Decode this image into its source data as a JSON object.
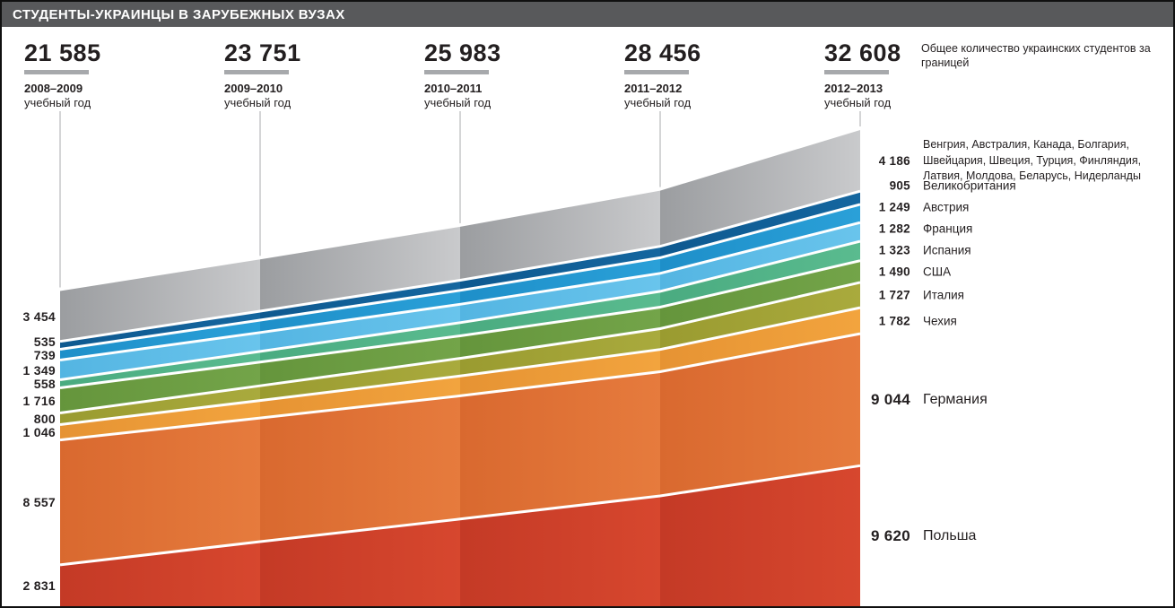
{
  "header": {
    "title": "СТУДЕНТЫ-УКРАИНЦЫ В ЗАРУБЕЖНЫХ ВУЗАХ"
  },
  "chart_data": {
    "type": "area",
    "stacked": true,
    "title": "СТУДЕНТЫ-УКРАИНЦЫ В ЗАРУБЕЖНЫХ ВУЗАХ",
    "note": "Общее количество украинских студентов за границей",
    "categories": [
      "2008–2009",
      "2009–2010",
      "2010–2011",
      "2011–2012",
      "2012–2013"
    ],
    "category_caption": "учебный год",
    "totals": [
      21585,
      23751,
      25983,
      28456,
      32608
    ],
    "legend_position": "right",
    "grid": false,
    "series": [
      {
        "name": "Польша",
        "start": 2831,
        "end": 9620,
        "color": "#d7472e",
        "color_dark": "#c43a26",
        "emphasis": true
      },
      {
        "name": "Германия",
        "start": 8557,
        "end": 9044,
        "color": "#e67b3d",
        "color_dark": "#d9692f",
        "emphasis": true
      },
      {
        "name": "Чехия",
        "start": 1046,
        "end": 1782,
        "color": "#f2a43e",
        "color_dark": "#e69333"
      },
      {
        "name": "Италия",
        "start": 800,
        "end": 1727,
        "color": "#a9aa3d",
        "color_dark": "#9a9b30"
      },
      {
        "name": "США",
        "start": 1716,
        "end": 1490,
        "color": "#73a449",
        "color_dark": "#65953c"
      },
      {
        "name": "Испания",
        "start": 558,
        "end": 1323,
        "color": "#5abb8f",
        "color_dark": "#4aab80"
      },
      {
        "name": "Франция",
        "start": 1349,
        "end": 1282,
        "color": "#69c4ec",
        "color_dark": "#54b5e2"
      },
      {
        "name": "Австрия",
        "start": 739,
        "end": 1249,
        "color": "#2aa0d8",
        "color_dark": "#1e8fc9"
      },
      {
        "name": "Великобритания",
        "start": 535,
        "end": 905,
        "color": "#14669f",
        "color_dark": "#0e5990"
      },
      {
        "name": "Венгрия, Австралия, Канада, Болгария, Швейцария, Швеция, Турция, Финляндия, Латвия, Молдова, Беларусь, Нидерланды",
        "start": 3454,
        "end": 4186,
        "color": "#c9cacc",
        "color_dark": "#9b9da0",
        "multiline": true
      }
    ]
  }
}
